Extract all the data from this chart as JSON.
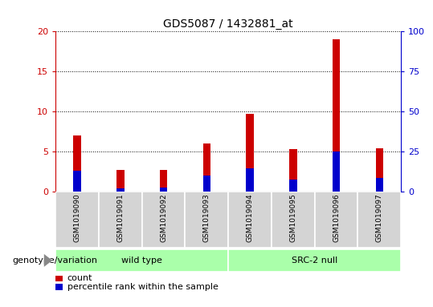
{
  "title": "GDS5087 / 1432881_at",
  "samples": [
    "GSM1019090",
    "GSM1019091",
    "GSM1019092",
    "GSM1019093",
    "GSM1019094",
    "GSM1019095",
    "GSM1019096",
    "GSM1019097"
  ],
  "counts": [
    7.0,
    2.7,
    2.7,
    6.0,
    9.7,
    5.3,
    19.0,
    5.4
  ],
  "percentile_ranks": [
    2.6,
    0.4,
    0.5,
    2.0,
    2.9,
    1.5,
    5.0,
    1.7
  ],
  "groups": [
    {
      "label": "wild type",
      "start": 0,
      "end": 3,
      "color": "#aaffaa"
    },
    {
      "label": "SRC-2 null",
      "start": 4,
      "end": 7,
      "color": "#aaffaa"
    }
  ],
  "group_label_prefix": "genotype/variation",
  "ylim_left": [
    0,
    20
  ],
  "ylim_right": [
    0,
    100
  ],
  "yticks_left": [
    0,
    5,
    10,
    15,
    20
  ],
  "yticks_right": [
    0,
    25,
    50,
    75,
    100
  ],
  "left_axis_color": "#cc0000",
  "right_axis_color": "#0000cc",
  "bar_width": 0.18,
  "count_color": "#cc0000",
  "percentile_color": "#0000cc",
  "bg_color": "#d4d4d4",
  "plot_bg": "#ffffff",
  "grid_color": "#000000",
  "legend_count": "count",
  "legend_percentile": "percentile rank within the sample"
}
